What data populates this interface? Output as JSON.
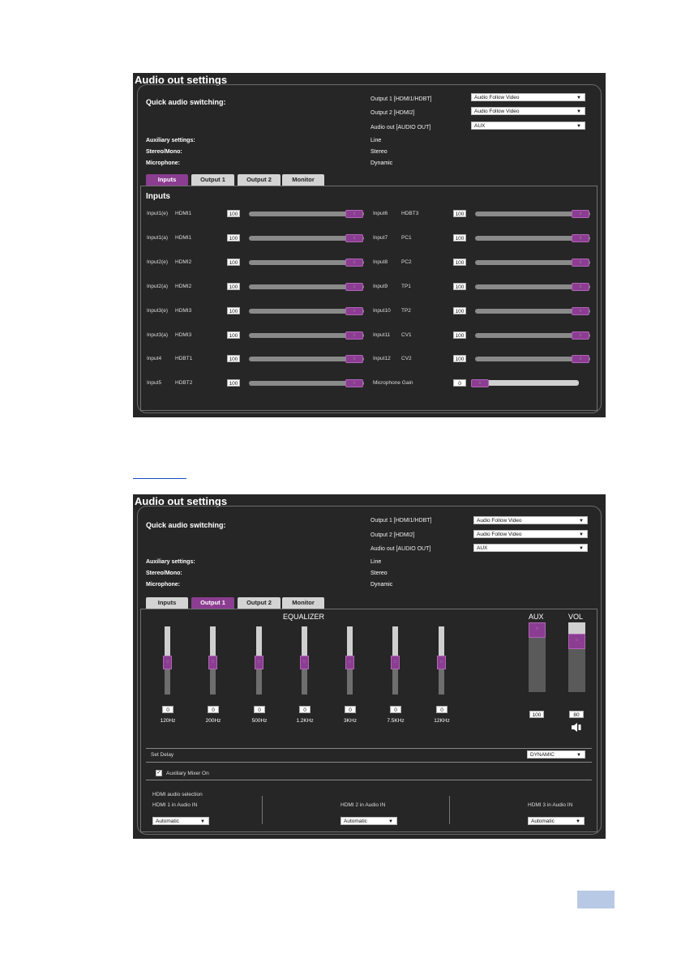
{
  "panel1": {
    "title": "Audio out settings",
    "quick_label": "Quick audio switching:",
    "outputs": [
      {
        "label": "Output 1 [HDMI1/HDBT]",
        "value": "Audio Follow Video"
      },
      {
        "label": "Output 2 [HDMI2]",
        "value": "Audio Follow Video"
      },
      {
        "label": "Audio out [AUDIO OUT]",
        "value": "AUX"
      }
    ],
    "aux": {
      "auxiliary": "Auxiliary settings:",
      "aux_value": "Line",
      "stereo": "Stereo/Mono:",
      "stereo_value": "Stereo",
      "mic": "Microphone:",
      "mic_value": "Dynamic"
    },
    "tabs": [
      "Inputs",
      "Output 1",
      "Output 2",
      "Monitor"
    ],
    "inputs_heading": "Inputs",
    "left_rows": [
      {
        "port": "Input1(e)",
        "name": "HDMI1",
        "value": "100"
      },
      {
        "port": "Input1(a)",
        "name": "HDMI1",
        "value": "100"
      },
      {
        "port": "Input2(e)",
        "name": "HDMI2",
        "value": "100"
      },
      {
        "port": "Input2(a)",
        "name": "HDMI2",
        "value": "100"
      },
      {
        "port": "Input3(e)",
        "name": "HDMI3",
        "value": "100"
      },
      {
        "port": "Input3(a)",
        "name": "HDMI3",
        "value": "100"
      },
      {
        "port": "Input4",
        "name": "HDBT1",
        "value": "100"
      },
      {
        "port": "Input5",
        "name": "HDBT2",
        "value": "100"
      }
    ],
    "right_rows": [
      {
        "port": "Input6",
        "name": "HDBT3",
        "value": "100"
      },
      {
        "port": "Input7",
        "name": "PC1",
        "value": "100"
      },
      {
        "port": "Input8",
        "name": "PC2",
        "value": "100"
      },
      {
        "port": "Input9",
        "name": "TP1",
        "value": "100"
      },
      {
        "port": "Input10",
        "name": "TP2",
        "value": "100"
      },
      {
        "port": "Input11",
        "name": "CV1",
        "value": "100"
      },
      {
        "port": "Input12",
        "name": "CV2",
        "value": "100"
      }
    ],
    "mic_gain": {
      "label": "Microphone Gain",
      "value": "0"
    }
  },
  "panel2": {
    "title": "Audio out settings",
    "quick_label": "Quick audio switching:",
    "outputs": [
      {
        "label": "Output 1 [HDMI1/HDBT]",
        "value": "Audio Follow Video"
      },
      {
        "label": "Output 2 [HDMI2]",
        "value": "Audio Follow Video"
      },
      {
        "label": "Audio out [AUDIO OUT]",
        "value": "AUX"
      }
    ],
    "aux": {
      "auxiliary": "Auxiliary settings:",
      "aux_value": "Line",
      "stereo": "Stereo/Mono:",
      "stereo_value": "Stereo",
      "mic": "Microphone:",
      "mic_value": "Dynamic"
    },
    "tabs": [
      "Inputs",
      "Output 1",
      "Output 2",
      "Monitor"
    ],
    "equalizer_label": "EQUALIZER",
    "bands": [
      {
        "freq": "120Hz",
        "value": "0"
      },
      {
        "freq": "200Hz",
        "value": "0"
      },
      {
        "freq": "500Hz",
        "value": "0"
      },
      {
        "freq": "1.2KHz",
        "value": "0"
      },
      {
        "freq": "3KHz",
        "value": "0"
      },
      {
        "freq": "7.5KHz",
        "value": "0"
      },
      {
        "freq": "12KHz",
        "value": "0"
      }
    ],
    "aux_label": "AUX",
    "aux_value": "100",
    "vol_label": "VOL",
    "vol_value": "80",
    "set_delay": "Set Delay",
    "delay_value": "DYNAMIC",
    "aux_mixer": "Auxiliary Mixer On",
    "hdmi_selection": "HDMI audio selection",
    "hdmi_cols": [
      {
        "label": "HDMI 1 in Audio IN",
        "value": "Automatic"
      },
      {
        "label": "HDMI 2 in Audio IN",
        "value": "Automatic"
      },
      {
        "label": "HDMI 3 in Audio IN",
        "value": "Automatic"
      }
    ]
  },
  "colors": {
    "accent": "#8b3d91",
    "panel_bg": "#262626",
    "page_badge": "#b8c9e5"
  }
}
